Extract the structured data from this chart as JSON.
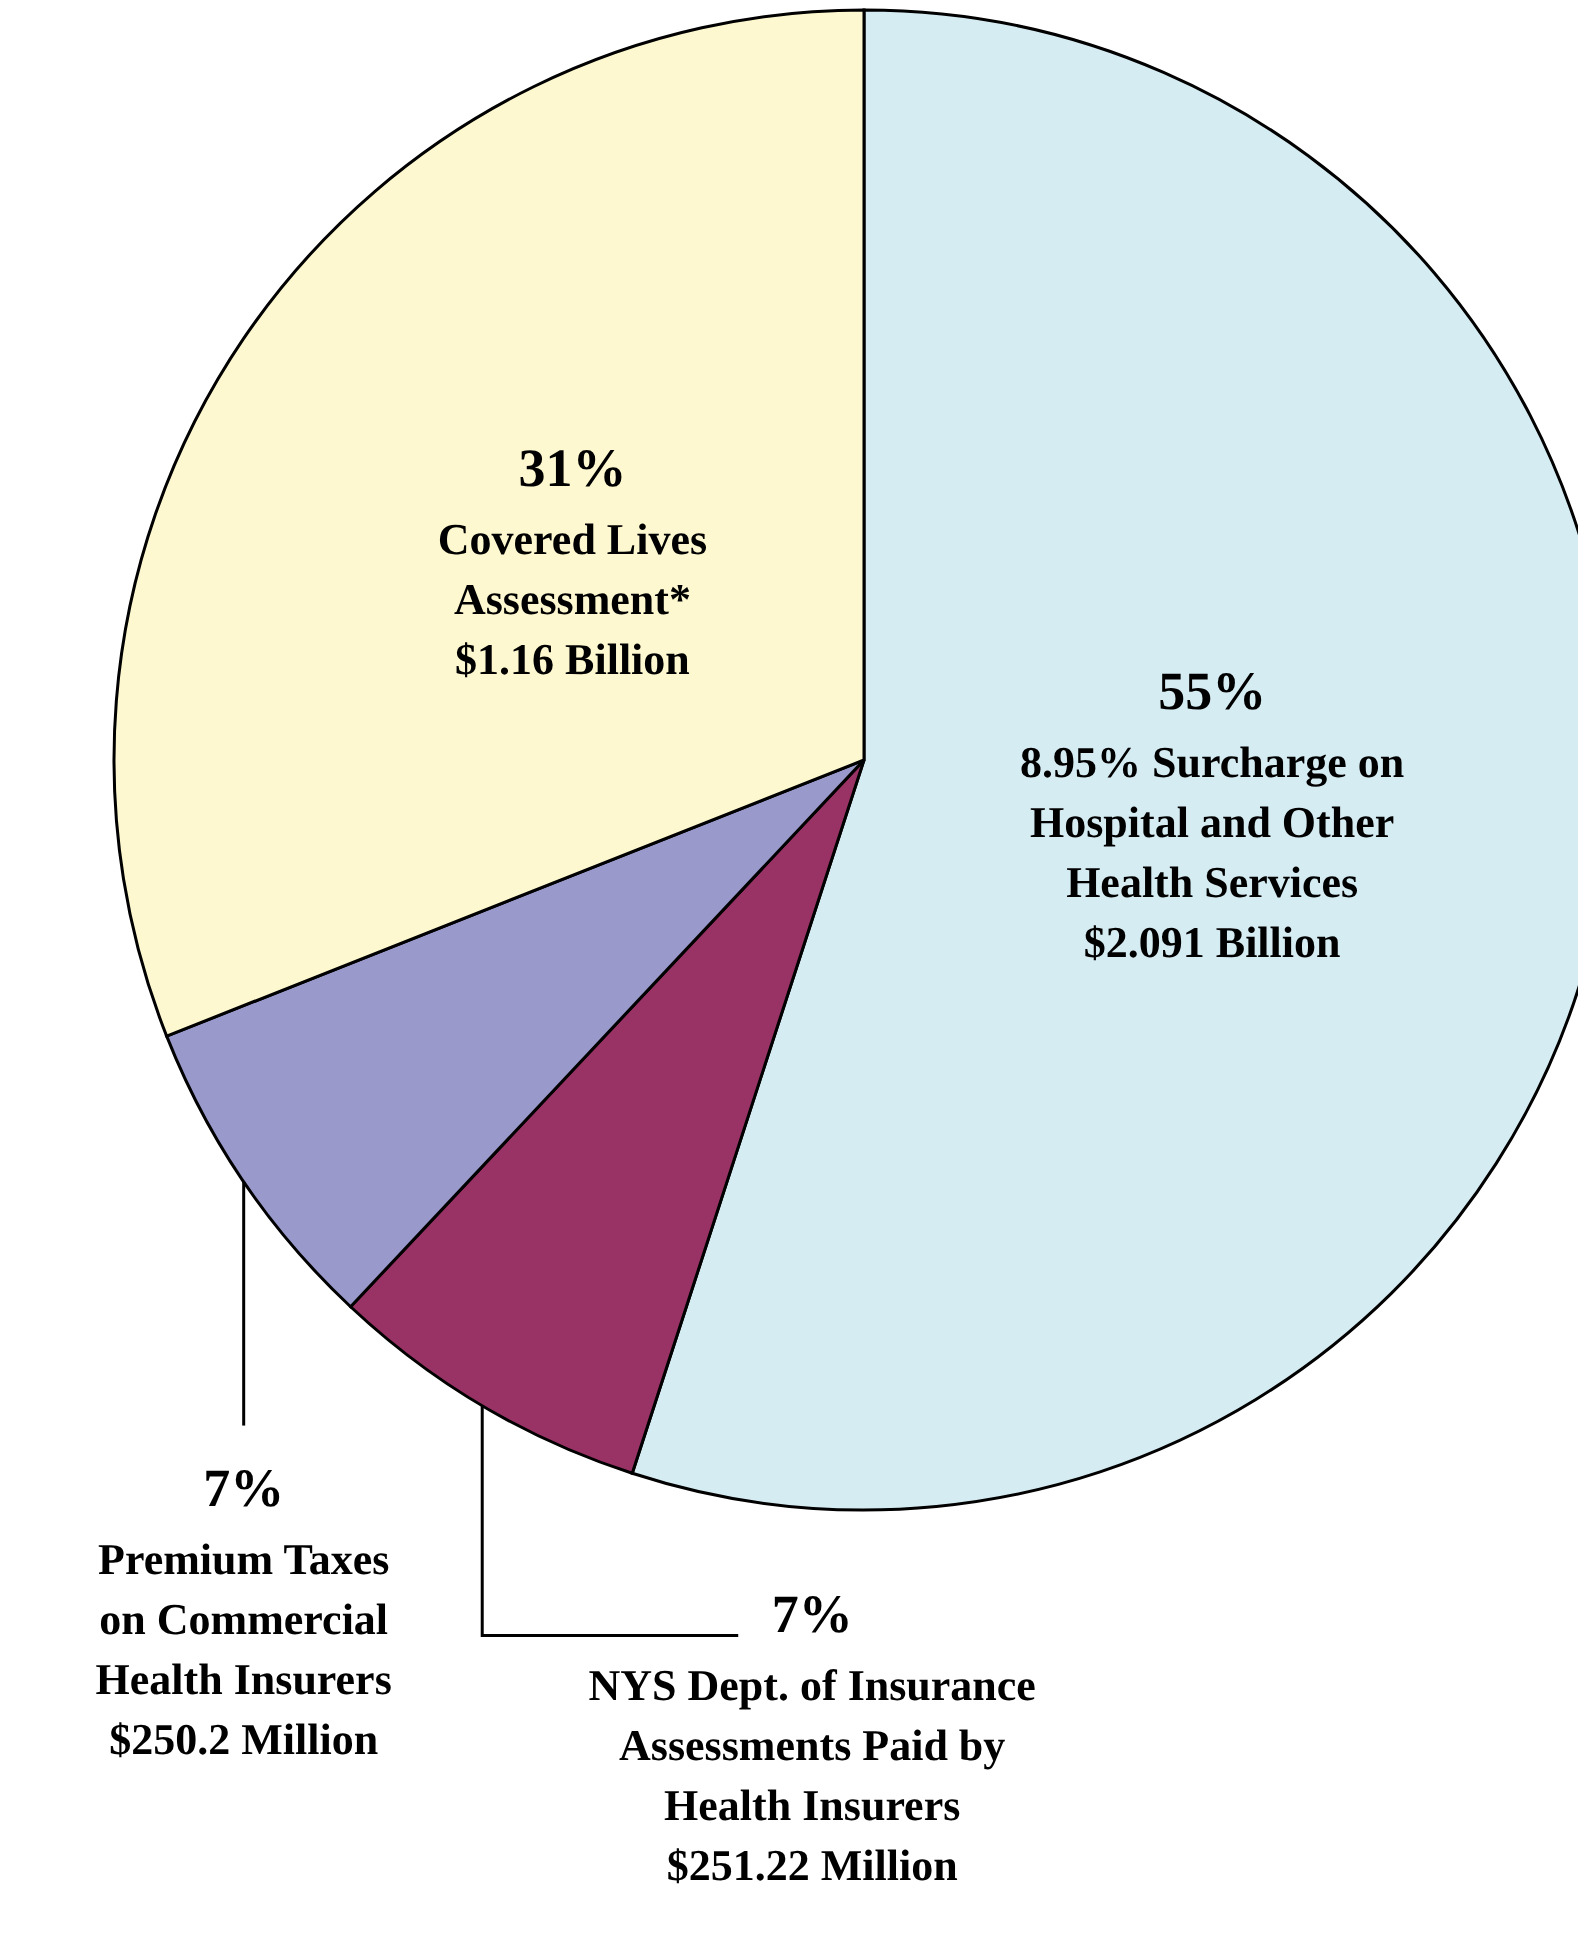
{
  "chart_data": {
    "type": "pie",
    "categories": [
      "8.95% Surcharge on\nHospital and Other\nHealth Services\n$2.091 Billion",
      "NYS Dept. of Insurance\nAssessments Paid by\nHealth Insurers\n$251.22 Million",
      "Premium Taxes\non Commercial\nHealth Insurers\n$250.2 Million",
      "Covered Lives\nAssessment*\n$1.16 Billion"
    ],
    "values": [
      55,
      7,
      7,
      31
    ],
    "value_labels": [
      "55%",
      "7%",
      "7%",
      "31%"
    ],
    "colors": [
      "#d5ecf3",
      "#993366",
      "#9999cc",
      "#fdf8cf"
    ]
  }
}
